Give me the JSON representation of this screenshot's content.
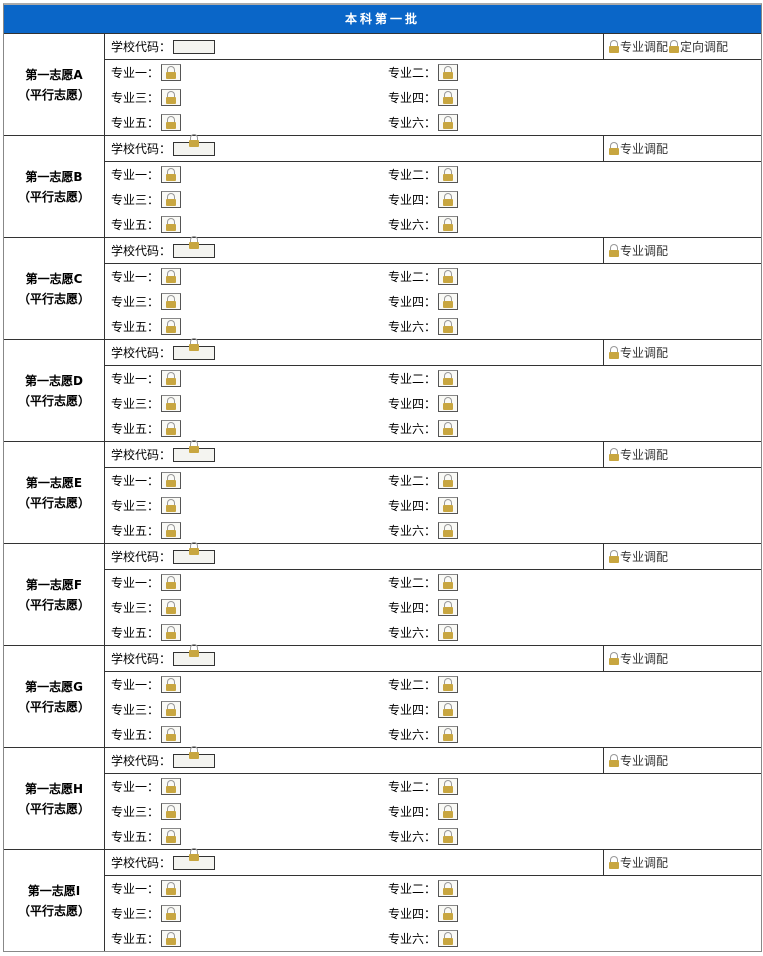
{
  "title": "本科第一批",
  "school_code_label": "学校代码：",
  "major_adjust_label": "专业调配",
  "directed_adjust_label": "定向调配",
  "subtitle": "（平行志愿）",
  "majors": [
    "专业一：",
    "专业二：",
    "专业三：",
    "专业四：",
    "专业五：",
    "专业六："
  ],
  "groups": [
    {
      "name": "第一志愿A",
      "school_locked": false,
      "directed": true
    },
    {
      "name": "第一志愿B",
      "school_locked": true,
      "directed": false
    },
    {
      "name": "第一志愿C",
      "school_locked": true,
      "directed": false
    },
    {
      "name": "第一志愿D",
      "school_locked": true,
      "directed": false
    },
    {
      "name": "第一志愿E",
      "school_locked": true,
      "directed": false
    },
    {
      "name": "第一志愿F",
      "school_locked": true,
      "directed": false
    },
    {
      "name": "第一志愿G",
      "school_locked": true,
      "directed": false
    },
    {
      "name": "第一志愿H",
      "school_locked": true,
      "directed": false
    },
    {
      "name": "第一志愿I",
      "school_locked": true,
      "directed": false
    }
  ],
  "icons": {
    "lock": "lock-icon"
  },
  "colors": {
    "header": "#0a66c8"
  }
}
